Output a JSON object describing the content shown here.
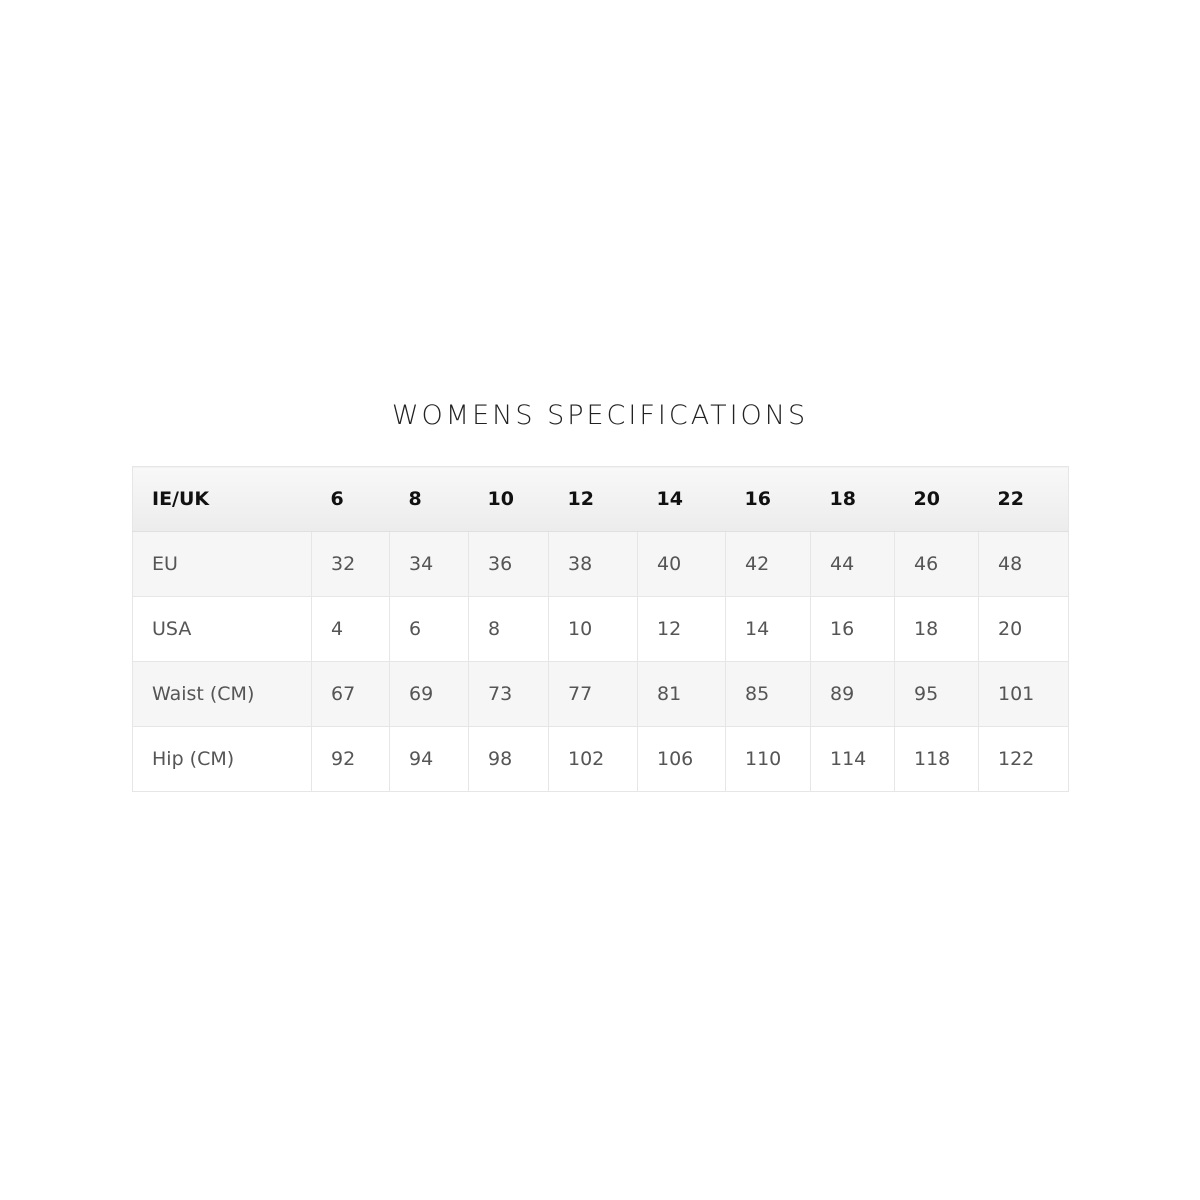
{
  "title": "WOMENS SPECIFICATIONS",
  "table": {
    "header": [
      "IE/UK",
      "6",
      "8",
      "10",
      "12",
      "14",
      "16",
      "18",
      "20",
      "22"
    ],
    "rows": [
      [
        "EU",
        "32",
        "34",
        "36",
        "38",
        "40",
        "42",
        "44",
        "46",
        "48"
      ],
      [
        "USA",
        "4",
        "6",
        "8",
        "10",
        "12",
        "14",
        "16",
        "18",
        "20"
      ],
      [
        "Waist (CM)",
        "67",
        "69",
        "73",
        "77",
        "81",
        "85",
        "89",
        "95",
        "101"
      ],
      [
        "Hip (CM)",
        "92",
        "94",
        "98",
        "102",
        "106",
        "110",
        "114",
        "118",
        "122"
      ]
    ]
  }
}
